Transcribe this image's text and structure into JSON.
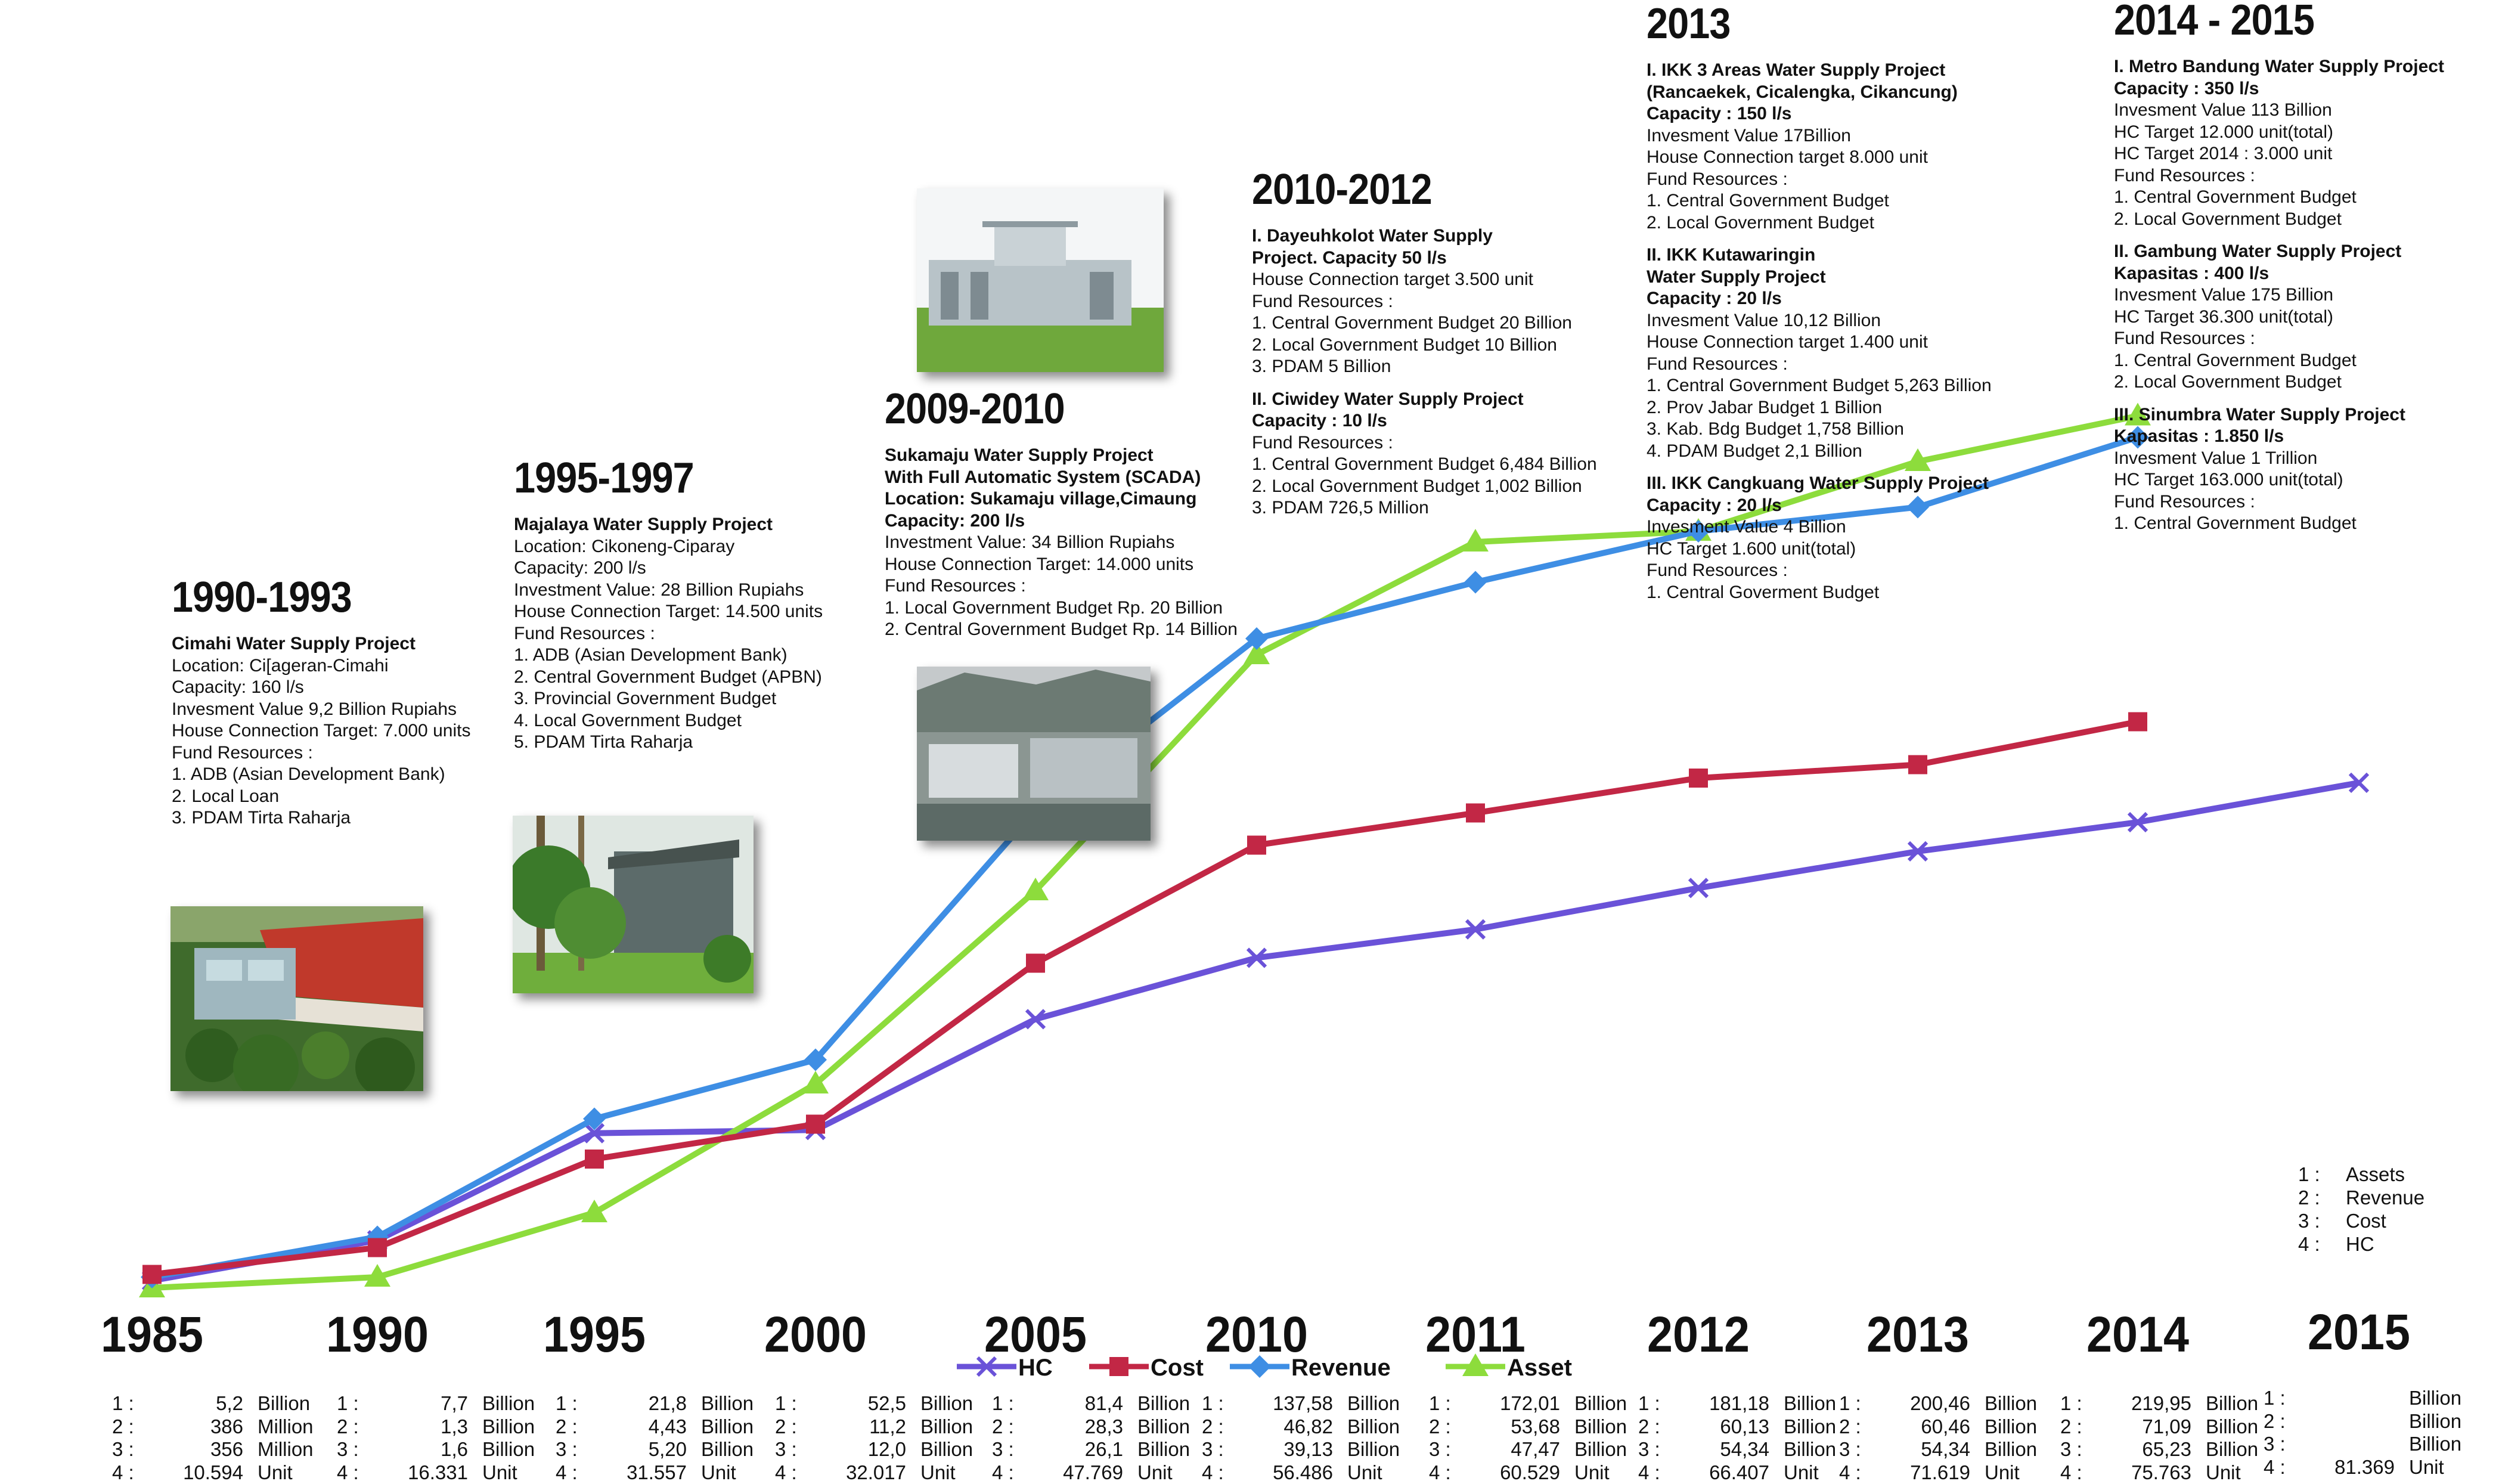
{
  "chart_data": {
    "type": "line",
    "categories": [
      "1985",
      "1990",
      "1995",
      "2000",
      "2005",
      "2010",
      "2011",
      "2012",
      "2013",
      "2014",
      "2015"
    ],
    "series": [
      {
        "name": "HC",
        "key": "hc",
        "color": "#6a52d8",
        "marker": "x",
        "values": [
          10594,
          16331,
          31557,
          32017,
          47769,
          56486,
          60529,
          66407,
          71619,
          75763,
          81369
        ]
      },
      {
        "name": "Cost",
        "key": "cost",
        "color": "#c22745",
        "marker": "square",
        "values": [
          5,
          15,
          48,
          61,
          121,
          165,
          177,
          190,
          195,
          211,
          null
        ]
      },
      {
        "name": "Revenue",
        "key": "revenue",
        "color": "#3e8ee4",
        "marker": "diamond",
        "values": [
          4,
          19,
          63,
          85,
          178,
          242,
          263,
          282,
          291,
          317,
          null
        ]
      },
      {
        "name": "Asset",
        "key": "asset",
        "color": "#8ddc3c",
        "marker": "triangle",
        "values": [
          0,
          4,
          28,
          76,
          148,
          236,
          278,
          282,
          308,
          325,
          null
        ]
      }
    ],
    "legend_placement": "bottom-center",
    "grid": false,
    "year_labels": [
      {
        "year": "1985",
        "rows": [
          {
            "i": "1 :",
            "v": "5,2",
            "u": "Billion"
          },
          {
            "i": "2 :",
            "v": "386",
            "u": "Million"
          },
          {
            "i": "3 :",
            "v": "356",
            "u": "Million"
          },
          {
            "i": "4 :",
            "v": "10.594",
            "u": "Unit"
          }
        ]
      },
      {
        "year": "1990",
        "rows": [
          {
            "i": "1 :",
            "v": "7,7",
            "u": "Billion"
          },
          {
            "i": "2 :",
            "v": "1,3",
            "u": "Billion"
          },
          {
            "i": "3 :",
            "v": "1,6",
            "u": "Billion"
          },
          {
            "i": "4 :",
            "v": "16.331",
            "u": "Unit"
          }
        ]
      },
      {
        "year": "1995",
        "rows": [
          {
            "i": "1 :",
            "v": "21,8",
            "u": "Billion"
          },
          {
            "i": "2 :",
            "v": "4,43",
            "u": "Billion"
          },
          {
            "i": "3 :",
            "v": "5,20",
            "u": "Billion"
          },
          {
            "i": "4 :",
            "v": "31.557",
            "u": "Unit"
          }
        ]
      },
      {
        "year": "2000",
        "rows": [
          {
            "i": "1 :",
            "v": "52,5",
            "u": "Billion"
          },
          {
            "i": "2 :",
            "v": "11,2",
            "u": "Billion"
          },
          {
            "i": "3 :",
            "v": "12,0",
            "u": "Billion"
          },
          {
            "i": "4 :",
            "v": "32.017",
            "u": "Unit"
          }
        ]
      },
      {
        "year": "2005",
        "rows": [
          {
            "i": "1 :",
            "v": "81,4",
            "u": "Billion"
          },
          {
            "i": "2 :",
            "v": "28,3",
            "u": "Billion"
          },
          {
            "i": "3 :",
            "v": "26,1",
            "u": "Billion"
          },
          {
            "i": "4 :",
            "v": "47.769",
            "u": "Unit"
          }
        ]
      },
      {
        "year": "2010",
        "rows": [
          {
            "i": "1 :",
            "v": "137,58",
            "u": "Billion"
          },
          {
            "i": "2 :",
            "v": "46,82",
            "u": "Billion"
          },
          {
            "i": "3 :",
            "v": "39,13",
            "u": "Billion"
          },
          {
            "i": "4 :",
            "v": "56.486",
            "u": "Unit"
          }
        ]
      },
      {
        "year": "2011",
        "rows": [
          {
            "i": "1 :",
            "v": "172,01",
            "u": "Billion"
          },
          {
            "i": "2 :",
            "v": "53,68",
            "u": "Billion"
          },
          {
            "i": "3 :",
            "v": "47,47",
            "u": "Billion"
          },
          {
            "i": "4 :",
            "v": "60.529",
            "u": "Unit"
          }
        ]
      },
      {
        "year": "2012",
        "rows": [
          {
            "i": "1 :",
            "v": "181,18",
            "u": "Billion"
          },
          {
            "i": "2 :",
            "v": "60,13",
            "u": "Billion"
          },
          {
            "i": "3 :",
            "v": "54,34",
            "u": "Billion"
          },
          {
            "i": "4 :",
            "v": "66.407",
            "u": "Unit"
          }
        ]
      },
      {
        "year": "2013",
        "rows": [
          {
            "i": "1 :",
            "v": "200,46",
            "u": "Billion"
          },
          {
            "i": "2 :",
            "v": "60,46",
            "u": "Billion"
          },
          {
            "i": "3 :",
            "v": "54,34",
            "u": "Billion"
          },
          {
            "i": "4 :",
            "v": "71.619",
            "u": "Unit"
          }
        ]
      },
      {
        "year": "2014",
        "rows": [
          {
            "i": "1 :",
            "v": "219,95",
            "u": "Billion"
          },
          {
            "i": "2 :",
            "v": "71,09",
            "u": "Billion"
          },
          {
            "i": "3 :",
            "v": "65,23",
            "u": "Billion"
          },
          {
            "i": "4 :",
            "v": "75.763",
            "u": "Unit"
          }
        ]
      },
      {
        "year": "2015",
        "rows": [
          {
            "i": "1 :",
            "v": "",
            "u": "Billion"
          },
          {
            "i": "2 :",
            "v": "",
            "u": "Billion"
          },
          {
            "i": "3 :",
            "v": "",
            "u": "Billion"
          },
          {
            "i": "4 :",
            "v": "81.369",
            "u": "Unit"
          }
        ]
      }
    ],
    "index_key": [
      {
        "i": "1 :",
        "label": "Assets"
      },
      {
        "i": "2 :",
        "label": "Revenue"
      },
      {
        "i": "3 :",
        "label": "Cost"
      },
      {
        "i": "4 :",
        "label": "HC"
      }
    ]
  },
  "milestones": [
    {
      "id": "m1990",
      "title": "1990-1993",
      "lines": [
        {
          "t": "Cimahi Water Supply Project",
          "b": true
        },
        {
          "t": "Location: Ci[ageran-Cimahi"
        },
        {
          "t": "Capacity: 160 l/s"
        },
        {
          "t": "Invesment Value  9,2 Billion Rupiahs"
        },
        {
          "t": "House Connection Target: 7.000 units"
        },
        {
          "t": "Fund Resources :"
        },
        {
          "t": "1. ADB (Asian Development Bank)"
        },
        {
          "t": "2. Local Loan"
        },
        {
          "t": "3. PDAM Tirta Raharja"
        }
      ]
    },
    {
      "id": "m1995",
      "title": "1995-1997",
      "lines": [
        {
          "t": "Majalaya Water Supply Project",
          "b": true
        },
        {
          "t": "Location: Cikoneng-Ciparay"
        },
        {
          "t": "Capacity:  200 l/s"
        },
        {
          "t": "Investment Value: 28 Billion Rupiahs"
        },
        {
          "t": "House Connection Target: 14.500 units"
        },
        {
          "t": "Fund Resources :"
        },
        {
          "t": "1. ADB (Asian Development Bank)"
        },
        {
          "t": "2. Central Government Budget (APBN)"
        },
        {
          "t": "3. Provincial Government Budget"
        },
        {
          "t": "4. Local Government Budget"
        },
        {
          "t": "5. PDAM Tirta Raharja"
        }
      ]
    },
    {
      "id": "m2009",
      "title": "2009-2010",
      "lines": [
        {
          "t": "Sukamaju Water Supply Project",
          "b": true
        },
        {
          "t": "With Full Automatic System (SCADA)",
          "b": true
        },
        {
          "t": "Location: Sukamaju village,Cimaung",
          "b": true
        },
        {
          "t": "Capacity: 200 l/s",
          "b": true
        },
        {
          "t": "Investment Value: 34 Billion Rupiahs"
        },
        {
          "t": "House Connection Target: 14.000 units"
        },
        {
          "t": "Fund Resources :"
        },
        {
          "t": "1. Local Government Budget  Rp. 20 Billion"
        },
        {
          "t": "2. Central Government Budget Rp. 14 Billion"
        }
      ]
    },
    {
      "id": "m2010",
      "title": "2010-2012",
      "lines": [
        {
          "t": "I. Dayeuhkolot Water Supply",
          "b": true
        },
        {
          "t": "Project. Capacity 50 l/s",
          "b": true
        },
        {
          "t": "House Connection target 3.500 unit"
        },
        {
          "t": "Fund Resources :"
        },
        {
          "t": "1. Central Government Budget 20 Billion"
        },
        {
          "t": "2. Local Government Budget 10 Billion"
        },
        {
          "t": "3. PDAM  5 Billion"
        },
        {
          "gap": true
        },
        {
          "t": "II.  Ciwidey Water Supply Project",
          "b": true
        },
        {
          "t": "Capacity : 10 l/s",
          "b": true
        },
        {
          "t": "Fund Resources :"
        },
        {
          "t": "1. Central Government Budget  6,484 Billion"
        },
        {
          "t": "2. Local Government Budget 1,002 Billion"
        },
        {
          "t": "3. PDAM  726,5 Million"
        }
      ]
    },
    {
      "id": "m2013",
      "title": "2013",
      "lines": [
        {
          "t": "I. IKK 3 Areas Water Supply Project",
          "b": true
        },
        {
          "t": " (Rancaekek,  Cicalengka, Cikancung)",
          "b": true
        },
        {
          "t": "Capacity : 150 l/s",
          "b": true
        },
        {
          "t": "Invesment Value 17Billion"
        },
        {
          "t": "House Connection target 8.000 unit"
        },
        {
          "t": "Fund Resources :"
        },
        {
          "t": "1. Central Government Budget"
        },
        {
          "t": "2. Local Government Budget"
        },
        {
          "gap": true
        },
        {
          "t": "II. IKK Kutawaringin",
          "b": true
        },
        {
          "t": "Water Supply Project",
          "b": true
        },
        {
          "t": "Capacity : 20 l/s",
          "b": true
        },
        {
          "t": "Invesment Value  10,12 Billion"
        },
        {
          "t": "House Connection target 1.400 unit"
        },
        {
          "t": "Fund Resources :"
        },
        {
          "t": "1. Central Government Budget  5,263 Billion"
        },
        {
          "t": "2. Prov Jabar Budget 1 Billion"
        },
        {
          "t": "3. Kab. Bdg Budget  1,758 Billion"
        },
        {
          "t": "4. PDAM Budget  2,1 Billion"
        },
        {
          "gap": true
        },
        {
          "t": "III. IKK Cangkuang Water Supply Project",
          "b": true
        },
        {
          "t": "Capacity :  20 l/s",
          "b": true
        },
        {
          "t": "Invesment Value    4 Billion"
        },
        {
          "t": "HC Target 1.600 unit(total)"
        },
        {
          "t": "Fund Resources :"
        },
        {
          "t": "1. Central Goverment Budget"
        }
      ]
    },
    {
      "id": "m2014",
      "title": "2014 - 2015",
      "lines": [
        {
          "t": "I. Metro Bandung Water Supply Project",
          "b": true
        },
        {
          "t": "Capacity : 350 l/s",
          "b": true
        },
        {
          "t": "Invesment Value 113 Billion"
        },
        {
          "t": "HC Target 12.000 unit(total)"
        },
        {
          "t": "HC Target  2014 : 3.000 unit"
        },
        {
          "t": "Fund Resources :"
        },
        {
          "t": "1. Central Government Budget"
        },
        {
          "t": "2. Local Government Budget"
        },
        {
          "gap": true
        },
        {
          "t": "II.  Gambung Water Supply Project",
          "b": true
        },
        {
          "t": "Kapasitas : 400 l/s",
          "b": true
        },
        {
          "t": "Invesment Value  175 Billion"
        },
        {
          "t": "HC Target 36.300 unit(total)"
        },
        {
          "t": "Fund Resources :"
        },
        {
          "t": "1. Central Government Budget"
        },
        {
          "t": "2. Local Government Budget"
        },
        {
          "gap": true
        },
        {
          "t": "III.  Sinumbra Water Supply Project",
          "b": true
        },
        {
          "t": "Kapasitas : 1.850 l/s",
          "b": true
        },
        {
          "t": "Invesment Value  1 Trillion"
        },
        {
          "t": "HC Target 163.000 unit(total)"
        },
        {
          "t": "Fund Resources :"
        },
        {
          "t": "1. Central Government Budget"
        }
      ]
    }
  ]
}
